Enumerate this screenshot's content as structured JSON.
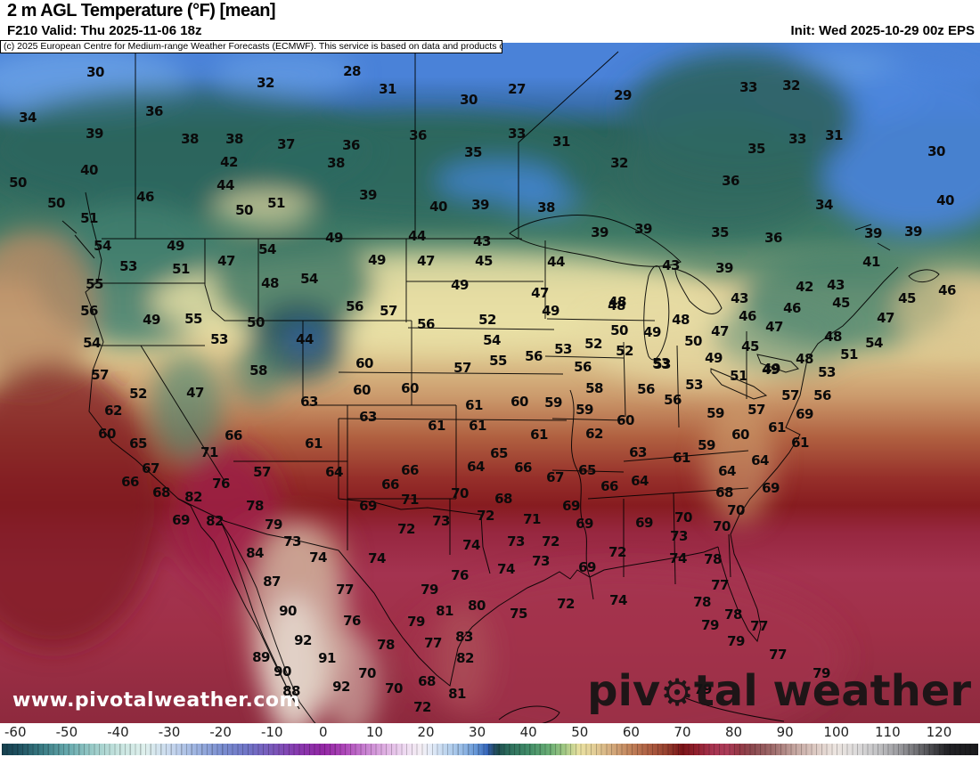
{
  "header": {
    "title": "2 m AGL Temperature (°F) [mean]",
    "valid": "F210 Valid: Thu 2025-11-06 18z",
    "init": "Init: Wed 2025-10-29 00z EPS",
    "copyright": "(c) 2025 European Centre for Medium-range Weather Forecasts (ECMWF). This service is based on data and products of the ECMWF."
  },
  "watermarks": {
    "site": "www.pivotalweather.com",
    "brand_prefix": "piv",
    "gear_icon": "⚙",
    "brand_suffix": "tal weather"
  },
  "colorbar": {
    "range": [
      -63,
      128
    ],
    "ticks": [
      -60,
      -50,
      -40,
      -30,
      -20,
      -10,
      0,
      10,
      20,
      30,
      40,
      50,
      60,
      70,
      80,
      90,
      100,
      110,
      120
    ],
    "stops": [
      [
        -63,
        "#16404e"
      ],
      [
        -60,
        "#1d4e5e"
      ],
      [
        -55,
        "#3b7d85"
      ],
      [
        -50,
        "#68aaae"
      ],
      [
        -45,
        "#9cccc9"
      ],
      [
        -40,
        "#c8e5e0"
      ],
      [
        -35,
        "#dff0ed"
      ],
      [
        -30,
        "#c8d8ee"
      ],
      [
        -25,
        "#9db3e0"
      ],
      [
        -20,
        "#7a8ed0"
      ],
      [
        -15,
        "#6f74c6"
      ],
      [
        -10,
        "#7a58ba"
      ],
      [
        -5,
        "#8838ae"
      ],
      [
        0,
        "#9327a4"
      ],
      [
        4,
        "#ad46b8"
      ],
      [
        8,
        "#c77fd0"
      ],
      [
        12,
        "#dfb0e2"
      ],
      [
        16,
        "#efdcf2"
      ],
      [
        19,
        "#f4eef4"
      ],
      [
        21,
        "#e4ecf8"
      ],
      [
        24,
        "#bcd4ee"
      ],
      [
        27,
        "#98bce6"
      ],
      [
        30,
        "#6092d4"
      ],
      [
        32,
        "#3464b8"
      ],
      [
        33,
        "#274f74"
      ],
      [
        34,
        "#1d4c50"
      ],
      [
        36,
        "#2c6c5c"
      ],
      [
        40,
        "#418c68"
      ],
      [
        44,
        "#68ac74"
      ],
      [
        47,
        "#a0c884"
      ],
      [
        50,
        "#e9e0a0"
      ],
      [
        53,
        "#e2cd96"
      ],
      [
        56,
        "#d5ae80"
      ],
      [
        60,
        "#c08159"
      ],
      [
        64,
        "#ab5a40"
      ],
      [
        67,
        "#96402f"
      ],
      [
        70,
        "#7a1418"
      ],
      [
        73,
        "#92202f"
      ],
      [
        76,
        "#a63350"
      ],
      [
        79,
        "#ac3c58"
      ],
      [
        81,
        "#963746"
      ],
      [
        84,
        "#8c4a50"
      ],
      [
        88,
        "#a06d6d"
      ],
      [
        92,
        "#c3a49e"
      ],
      [
        96,
        "#dcc9c2"
      ],
      [
        100,
        "#ece5e0"
      ],
      [
        104,
        "#dedcdc"
      ],
      [
        108,
        "#c4c4c6"
      ],
      [
        112,
        "#a0a0a4"
      ],
      [
        116,
        "#707074"
      ],
      [
        120,
        "#3a3a3e"
      ],
      [
        122,
        "#222226"
      ],
      [
        128,
        "#1a1a1c"
      ]
    ]
  },
  "map": {
    "labels": [
      [
        30,
        107,
        81
      ],
      [
        32,
        298,
        93
      ],
      [
        34,
        31,
        132
      ],
      [
        36,
        173,
        125
      ],
      [
        39,
        106,
        150
      ],
      [
        38,
        213,
        156
      ],
      [
        38,
        263,
        156
      ],
      [
        37,
        321,
        162
      ],
      [
        38,
        377,
        183
      ],
      [
        40,
        100,
        191
      ],
      [
        42,
        257,
        182
      ],
      [
        44,
        253,
        208
      ],
      [
        46,
        163,
        221
      ],
      [
        50,
        20,
        205
      ],
      [
        50,
        63,
        228
      ],
      [
        51,
        310,
        228
      ],
      [
        50,
        274,
        236
      ],
      [
        51,
        100,
        245
      ],
      [
        49,
        197,
        276
      ],
      [
        54,
        115,
        276
      ],
      [
        53,
        144,
        299
      ],
      [
        51,
        203,
        302
      ],
      [
        47,
        254,
        293
      ],
      [
        54,
        300,
        280
      ],
      [
        49,
        375,
        267
      ],
      [
        54,
        347,
        313
      ],
      [
        28,
        395,
        80
      ],
      [
        31,
        435,
        100
      ],
      [
        30,
        526,
        112
      ],
      [
        27,
        580,
        100
      ],
      [
        29,
        699,
        107
      ],
      [
        33,
        580,
        150
      ],
      [
        31,
        630,
        159
      ],
      [
        36,
        469,
        152
      ],
      [
        36,
        394,
        163
      ],
      [
        35,
        531,
        171
      ],
      [
        32,
        695,
        183
      ],
      [
        39,
        413,
        219
      ],
      [
        40,
        492,
        232
      ],
      [
        39,
        539,
        230
      ],
      [
        38,
        613,
        233
      ],
      [
        39,
        673,
        261
      ],
      [
        39,
        722,
        257
      ],
      [
        44,
        468,
        265
      ],
      [
        43,
        541,
        271
      ],
      [
        49,
        423,
        292
      ],
      [
        47,
        478,
        293
      ],
      [
        45,
        543,
        293
      ],
      [
        44,
        624,
        294
      ],
      [
        43,
        753,
        298
      ],
      [
        33,
        840,
        98
      ],
      [
        32,
        888,
        96
      ],
      [
        31,
        936,
        152
      ],
      [
        33,
        895,
        156
      ],
      [
        30,
        1051,
        170
      ],
      [
        35,
        849,
        167
      ],
      [
        36,
        820,
        203
      ],
      [
        34,
        925,
        230
      ],
      [
        40,
        1061,
        225
      ],
      [
        35,
        808,
        261
      ],
      [
        36,
        868,
        267
      ],
      [
        39,
        980,
        262
      ],
      [
        39,
        1025,
        260
      ],
      [
        41,
        978,
        294
      ],
      [
        39,
        813,
        301
      ],
      [
        55,
        106,
        319
      ],
      [
        48,
        303,
        318
      ],
      [
        56,
        100,
        349
      ],
      [
        49,
        170,
        359
      ],
      [
        55,
        217,
        358
      ],
      [
        50,
        287,
        362
      ],
      [
        53,
        246,
        381
      ],
      [
        54,
        103,
        385
      ],
      [
        44,
        342,
        381
      ],
      [
        58,
        290,
        416
      ],
      [
        57,
        112,
        421
      ],
      [
        52,
        155,
        442
      ],
      [
        47,
        219,
        441
      ],
      [
        63,
        347,
        451
      ],
      [
        62,
        127,
        461
      ],
      [
        60,
        120,
        487
      ],
      [
        65,
        155,
        498
      ],
      [
        66,
        262,
        489
      ],
      [
        61,
        352,
        498
      ],
      [
        71,
        235,
        508
      ],
      [
        57,
        294,
        530
      ],
      [
        67,
        169,
        526
      ],
      [
        66,
        146,
        541
      ],
      [
        68,
        181,
        553
      ],
      [
        82,
        217,
        558
      ],
      [
        76,
        248,
        543
      ],
      [
        64,
        375,
        530
      ],
      [
        49,
        516,
        320
      ],
      [
        47,
        606,
        329
      ],
      [
        48,
        693,
        339
      ],
      [
        49,
        618,
        349
      ],
      [
        56,
        398,
        344
      ],
      [
        57,
        436,
        349
      ],
      [
        56,
        478,
        364
      ],
      [
        52,
        547,
        359
      ],
      [
        54,
        552,
        382
      ],
      [
        53,
        632,
        392
      ],
      [
        52,
        666,
        386
      ],
      [
        56,
        599,
        400
      ],
      [
        55,
        559,
        405
      ],
      [
        56,
        654,
        412
      ],
      [
        53,
        742,
        408
      ],
      [
        60,
        409,
        408
      ],
      [
        57,
        519,
        413
      ],
      [
        60,
        406,
        438
      ],
      [
        60,
        460,
        436
      ],
      [
        58,
        667,
        436
      ],
      [
        63,
        413,
        468
      ],
      [
        61,
        532,
        455
      ],
      [
        60,
        583,
        451
      ],
      [
        59,
        621,
        452
      ],
      [
        59,
        656,
        460
      ],
      [
        61,
        490,
        478
      ],
      [
        61,
        536,
        478
      ],
      [
        60,
        702,
        472
      ],
      [
        61,
        605,
        488
      ],
      [
        62,
        667,
        487
      ],
      [
        65,
        560,
        509
      ],
      [
        63,
        716,
        508
      ],
      [
        66,
        460,
        528
      ],
      [
        64,
        534,
        524
      ],
      [
        66,
        587,
        525
      ],
      [
        67,
        623,
        536
      ],
      [
        65,
        659,
        528
      ],
      [
        64,
        718,
        540
      ],
      [
        66,
        438,
        544
      ],
      [
        66,
        684,
        546
      ],
      [
        70,
        516,
        554
      ],
      [
        71,
        460,
        561
      ],
      [
        68,
        565,
        560
      ],
      [
        48,
        692,
        343
      ],
      [
        48,
        764,
        359
      ],
      [
        46,
        839,
        355
      ],
      [
        47,
        808,
        372
      ],
      [
        47,
        869,
        367
      ],
      [
        50,
        695,
        371
      ],
      [
        49,
        732,
        373
      ],
      [
        50,
        778,
        383
      ],
      [
        45,
        842,
        389
      ],
      [
        52,
        701,
        394
      ],
      [
        49,
        801,
        402
      ],
      [
        53,
        743,
        409
      ],
      [
        51,
        829,
        422
      ],
      [
        49,
        865,
        415
      ],
      [
        53,
        779,
        432
      ],
      [
        56,
        725,
        437
      ],
      [
        56,
        755,
        449
      ],
      [
        59,
        803,
        464
      ],
      [
        57,
        849,
        460
      ],
      [
        42,
        903,
        322
      ],
      [
        43,
        938,
        320
      ],
      [
        43,
        830,
        335
      ],
      [
        45,
        944,
        340
      ],
      [
        45,
        1018,
        335
      ],
      [
        46,
        1063,
        326
      ],
      [
        46,
        889,
        346
      ],
      [
        47,
        994,
        357
      ],
      [
        48,
        935,
        378
      ],
      [
        54,
        981,
        385
      ],
      [
        51,
        953,
        398
      ],
      [
        48,
        903,
        403
      ],
      [
        49,
        866,
        414
      ],
      [
        53,
        928,
        418
      ],
      [
        57,
        887,
        444
      ],
      [
        56,
        923,
        444
      ],
      [
        69,
        903,
        465
      ],
      [
        60,
        831,
        488
      ],
      [
        61,
        872,
        480
      ],
      [
        61,
        898,
        497
      ],
      [
        59,
        793,
        500
      ],
      [
        61,
        765,
        514
      ],
      [
        64,
        853,
        517
      ],
      [
        64,
        816,
        529
      ],
      [
        68,
        813,
        553
      ],
      [
        69,
        865,
        548
      ],
      [
        69,
        203,
        584
      ],
      [
        82,
        241,
        585
      ],
      [
        78,
        286,
        568
      ],
      [
        79,
        307,
        589
      ],
      [
        73,
        328,
        608
      ],
      [
        74,
        357,
        626
      ],
      [
        84,
        286,
        621
      ],
      [
        87,
        305,
        653
      ],
      [
        90,
        323,
        686
      ],
      [
        92,
        340,
        719
      ],
      [
        91,
        367,
        739
      ],
      [
        89,
        293,
        738
      ],
      [
        90,
        317,
        754
      ],
      [
        88,
        327,
        776
      ],
      [
        69,
        413,
        568
      ],
      [
        72,
        456,
        594
      ],
      [
        73,
        495,
        585
      ],
      [
        72,
        545,
        579
      ],
      [
        71,
        597,
        583
      ],
      [
        69,
        641,
        568
      ],
      [
        69,
        656,
        588
      ],
      [
        69,
        723,
        587
      ],
      [
        74,
        529,
        612
      ],
      [
        73,
        579,
        608
      ],
      [
        72,
        618,
        608
      ],
      [
        74,
        423,
        627
      ],
      [
        73,
        607,
        630
      ],
      [
        72,
        693,
        620
      ],
      [
        69,
        659,
        637
      ],
      [
        74,
        568,
        639
      ],
      [
        76,
        516,
        646
      ],
      [
        77,
        387,
        662
      ],
      [
        79,
        482,
        662
      ],
      [
        72,
        635,
        678
      ],
      [
        74,
        694,
        674
      ],
      [
        80,
        535,
        680
      ],
      [
        75,
        582,
        689
      ],
      [
        76,
        395,
        697
      ],
      [
        81,
        499,
        686
      ],
      [
        79,
        467,
        698
      ],
      [
        83,
        521,
        715
      ],
      [
        78,
        433,
        724
      ],
      [
        77,
        486,
        722
      ],
      [
        82,
        522,
        739
      ],
      [
        70,
        412,
        756
      ],
      [
        70,
        442,
        773
      ],
      [
        68,
        479,
        765
      ],
      [
        81,
        513,
        779
      ],
      [
        72,
        474,
        794
      ],
      [
        92,
        383,
        771
      ],
      [
        70,
        767,
        581
      ],
      [
        70,
        826,
        573
      ],
      [
        70,
        810,
        591
      ],
      [
        73,
        762,
        602
      ],
      [
        74,
        761,
        627
      ],
      [
        78,
        800,
        628
      ],
      [
        77,
        808,
        657
      ],
      [
        78,
        788,
        676
      ],
      [
        78,
        823,
        690
      ],
      [
        79,
        797,
        702
      ],
      [
        79,
        826,
        720
      ],
      [
        77,
        852,
        703
      ],
      [
        77,
        873,
        735
      ],
      [
        79,
        922,
        756
      ],
      [
        79,
        789,
        774
      ]
    ]
  }
}
